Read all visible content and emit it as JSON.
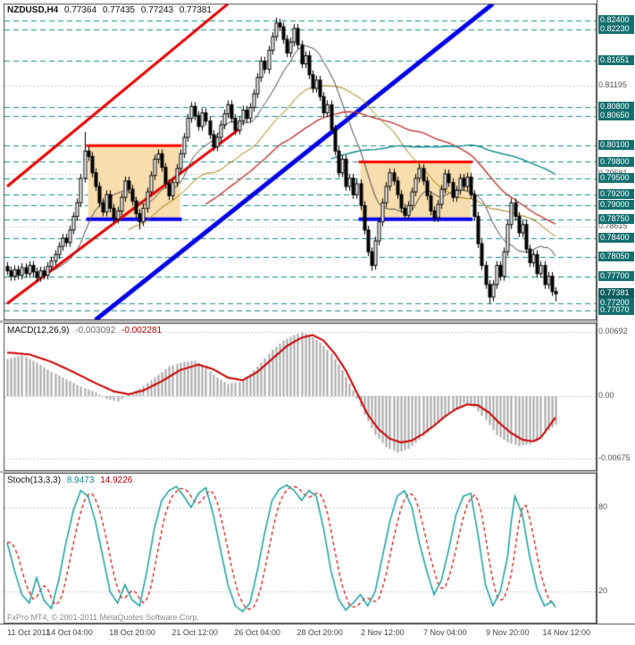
{
  "header": {
    "symbol": "NZDUSD,H4",
    "open": "0.77364",
    "high": "0.77435",
    "low": "0.77243",
    "close": "0.77381"
  },
  "watermark": "FxPro MT4, © 2001-2011 MetaQuotes Software Corp.",
  "colors": {
    "level": "#1d8a8a",
    "level_label_bg": "#136f6f",
    "grid": "#c8c8c8",
    "text": "#555555",
    "candle_up": "#ffffff",
    "candle_down": "#000000",
    "candle_outline": "#000000",
    "hist": "#a6a6a6",
    "macd_signal": "#cc0000",
    "stoch_main": "#18a0a0",
    "stoch_signal": "#cc0000",
    "box_fill": "#f8ddae",
    "box_top": "#ff0000",
    "box_bottom": "#0000ff",
    "trend_blue": "#0000e6",
    "trend_red": "#e60000"
  },
  "time_axis": {
    "labels": [
      "11 Oct 2011",
      "14 Oct 04:00",
      "18 Oct 20:00",
      "21 Oct 12:00",
      "26 Oct 04:00",
      "28 Oct 20:00",
      "2 Nov 12:00",
      "7 Nov 04:00",
      "9 Nov 20:00",
      "14 Nov 12:00"
    ],
    "tick_bars": [
      0,
      17,
      34,
      51,
      68,
      85,
      102,
      119,
      136,
      152
    ]
  },
  "chart_data": [
    {
      "type": "candlestick",
      "symbol": "NZDUSD",
      "timeframe": "H4",
      "price_min": 0.7691,
      "price_max": 0.8269,
      "bars": 150,
      "open_first": 0.7788,
      "wick": 0.0008,
      "closes": [
        0.778,
        0.777,
        0.7782,
        0.7772,
        0.7786,
        0.7775,
        0.779,
        0.7778,
        0.7768,
        0.778,
        0.7772,
        0.7788,
        0.7798,
        0.781,
        0.7825,
        0.784,
        0.7832,
        0.7855,
        0.788,
        0.7905,
        0.795,
        0.8,
        0.799,
        0.796,
        0.7935,
        0.7905,
        0.7888,
        0.792,
        0.7895,
        0.7875,
        0.789,
        0.7915,
        0.7945,
        0.793,
        0.7908,
        0.7885,
        0.787,
        0.7895,
        0.7925,
        0.7955,
        0.7985,
        0.7995,
        0.797,
        0.794,
        0.7918,
        0.7942,
        0.7968,
        0.7995,
        0.8025,
        0.806,
        0.8082,
        0.8065,
        0.8045,
        0.807,
        0.8055,
        0.803,
        0.8008,
        0.8025,
        0.8048,
        0.8068,
        0.8085,
        0.806,
        0.8038,
        0.8055,
        0.8075,
        0.806,
        0.808,
        0.8105,
        0.8135,
        0.8165,
        0.815,
        0.8185,
        0.821,
        0.8235,
        0.8228,
        0.8205,
        0.818,
        0.82,
        0.8225,
        0.8195,
        0.816,
        0.8175,
        0.814,
        0.8115,
        0.813,
        0.81,
        0.807,
        0.8085,
        0.804,
        0.8,
        0.796,
        0.7985,
        0.7935,
        0.795,
        0.792,
        0.794,
        0.79,
        0.7855,
        0.7815,
        0.779,
        0.7835,
        0.787,
        0.7905,
        0.7935,
        0.796,
        0.7945,
        0.792,
        0.7895,
        0.7882,
        0.79,
        0.7925,
        0.795,
        0.7968,
        0.7945,
        0.7918,
        0.789,
        0.7878,
        0.7902,
        0.793,
        0.7958,
        0.7942,
        0.7915,
        0.7928,
        0.795,
        0.7935,
        0.7952,
        0.792,
        0.788,
        0.783,
        0.779,
        0.7755,
        0.7732,
        0.7755,
        0.779,
        0.777,
        0.7815,
        0.7865,
        0.7905,
        0.788,
        0.785,
        0.7865,
        0.782,
        0.7795,
        0.781,
        0.7775,
        0.779,
        0.7755,
        0.777,
        0.7742,
        0.7738
      ],
      "wick_overrides": {
        "21": {
          "h": 0.8035
        },
        "36": {
          "l": 0.7856
        },
        "73": {
          "h": 0.8245
        },
        "74": {
          "h": 0.8243
        },
        "99": {
          "l": 0.778
        },
        "131": {
          "l": 0.772
        },
        "149": {
          "l": 0.7724
        }
      },
      "levels": [
        {
          "price": 0.824,
          "label": "0.82400"
        },
        {
          "price": 0.8223,
          "label": "0.82230"
        },
        {
          "price": 0.81651,
          "label": "0.81651"
        },
        {
          "price": 0.808,
          "label": "0.80800"
        },
        {
          "price": 0.8065,
          "label": "0.80650"
        },
        {
          "price": 0.801,
          "label": "0.80100"
        },
        {
          "price": 0.798,
          "label": "0.79800"
        },
        {
          "price": 0.795,
          "label": "0.79500"
        },
        {
          "price": 0.792,
          "label": "0.79200"
        },
        {
          "price": 0.79,
          "label": "0.79000"
        },
        {
          "price": 0.7875,
          "label": "0.78750"
        },
        {
          "price": 0.784,
          "label": "0.78400"
        },
        {
          "price": 0.7805,
          "label": "0.78050"
        },
        {
          "price": 0.777,
          "label": "0.77700"
        },
        {
          "price": 0.772,
          "label": "0.77200"
        },
        {
          "price": 0.7707,
          "label": "0.77070"
        }
      ],
      "grid_ticks": [
        {
          "price": 0.81195,
          "label": "0.81195"
        },
        {
          "price": 0.79581,
          "label": "0.79581"
        },
        {
          "price": 0.78615,
          "label": "0.78615"
        }
      ],
      "current_price": {
        "price": 0.77381,
        "label": "0.77381"
      },
      "trendlines": [
        {
          "name": "blue-uptrend-line",
          "color": "#0000e6",
          "width": 5,
          "points": [
            [
              24,
              0.769
            ],
            [
              132,
              0.827
            ]
          ]
        },
        {
          "name": "red-channel-upper",
          "color": "#e60000",
          "width": 3,
          "points": [
            [
              0,
              0.7935
            ],
            [
              60,
              0.827
            ]
          ]
        },
        {
          "name": "red-channel-lower",
          "color": "#e60000",
          "width": 3,
          "points": [
            [
              0,
              0.772
            ],
            [
              63,
              0.804
            ]
          ]
        }
      ],
      "boxes": [
        {
          "from_bar": 22,
          "to_bar": 47,
          "top": 0.801,
          "bottom": 0.7875,
          "fill": "#f8ddae",
          "top_color": "#ff0000",
          "bottom_color": "#0000ff"
        },
        {
          "from_bar": 96,
          "to_bar": 126,
          "top": 0.798,
          "bottom": 0.7875,
          "fill": "#f8ddae",
          "top_color": "#ff0000",
          "bottom_color": "#0000ff"
        }
      ],
      "moving_averages": [
        {
          "period": 13,
          "color": "#4a4a4a",
          "width": 1
        },
        {
          "period": 34,
          "color": "#9a7d00",
          "width": 1
        },
        {
          "period": 55,
          "color": "#c23a3a",
          "width": 1.4
        },
        {
          "period": 89,
          "color": "#0e8989",
          "width": 1.4
        }
      ]
    },
    {
      "type": "macd",
      "label": "MACD(12,26,9)",
      "value_main": "-0.003092",
      "value_signal": "-0.002281",
      "v_min": -0.008,
      "v_max": 0.0078,
      "ticks": [
        {
          "v": 0.00692,
          "label": "0.00692"
        },
        {
          "v": 0,
          "label": "0.00"
        },
        {
          "v": -0.00675,
          "label": "-0.00675"
        }
      ],
      "main_anchors": [
        [
          0,
          0.004
        ],
        [
          4,
          0.0044
        ],
        [
          8,
          0.0036
        ],
        [
          12,
          0.0026
        ],
        [
          16,
          0.0018
        ],
        [
          20,
          0.001
        ],
        [
          24,
          0.0004
        ],
        [
          27,
          -0.0003
        ],
        [
          30,
          -0.0006
        ],
        [
          33,
          0.0002
        ],
        [
          36,
          0.0008
        ],
        [
          40,
          0.002
        ],
        [
          44,
          0.0032
        ],
        [
          48,
          0.0037
        ],
        [
          51,
          0.0038
        ],
        [
          54,
          0.003
        ],
        [
          57,
          0.002
        ],
        [
          60,
          0.0013
        ],
        [
          63,
          0.0015
        ],
        [
          66,
          0.0024
        ],
        [
          69,
          0.0036
        ],
        [
          72,
          0.005
        ],
        [
          75,
          0.006
        ],
        [
          78,
          0.0066
        ],
        [
          80,
          0.0069
        ],
        [
          82,
          0.0066
        ],
        [
          85,
          0.0058
        ],
        [
          88,
          0.0046
        ],
        [
          91,
          0.0028
        ],
        [
          94,
          0.0006
        ],
        [
          97,
          -0.002
        ],
        [
          100,
          -0.0042
        ],
        [
          103,
          -0.0055
        ],
        [
          106,
          -0.0061
        ],
        [
          109,
          -0.0057
        ],
        [
          112,
          -0.0047
        ],
        [
          115,
          -0.0036
        ],
        [
          118,
          -0.0026
        ],
        [
          121,
          -0.0015
        ],
        [
          124,
          -0.0008
        ],
        [
          127,
          -0.0012
        ],
        [
          130,
          -0.0026
        ],
        [
          133,
          -0.0042
        ],
        [
          136,
          -0.005
        ],
        [
          139,
          -0.0054
        ],
        [
          142,
          -0.0052
        ],
        [
          145,
          -0.0044
        ],
        [
          147,
          -0.0037
        ],
        [
          149,
          -0.0031
        ]
      ],
      "signal_anchors": [
        [
          0,
          0.0047
        ],
        [
          6,
          0.0045
        ],
        [
          12,
          0.0037
        ],
        [
          18,
          0.0026
        ],
        [
          24,
          0.0014
        ],
        [
          29,
          0.0005
        ],
        [
          33,
          0.0002
        ],
        [
          37,
          0.0006
        ],
        [
          42,
          0.0016
        ],
        [
          47,
          0.0028
        ],
        [
          52,
          0.0034
        ],
        [
          56,
          0.0029
        ],
        [
          60,
          0.002
        ],
        [
          64,
          0.0017
        ],
        [
          68,
          0.0026
        ],
        [
          72,
          0.004
        ],
        [
          76,
          0.0054
        ],
        [
          80,
          0.0063
        ],
        [
          83,
          0.0066
        ],
        [
          86,
          0.006
        ],
        [
          89,
          0.0046
        ],
        [
          92,
          0.0028
        ],
        [
          95,
          0.0004
        ],
        [
          98,
          -0.002
        ],
        [
          101,
          -0.0036
        ],
        [
          104,
          -0.0046
        ],
        [
          107,
          -0.005
        ],
        [
          110,
          -0.0048
        ],
        [
          113,
          -0.0041
        ],
        [
          116,
          -0.0032
        ],
        [
          119,
          -0.0022
        ],
        [
          122,
          -0.0014
        ],
        [
          125,
          -0.0009
        ],
        [
          128,
          -0.001
        ],
        [
          131,
          -0.0018
        ],
        [
          134,
          -0.003
        ],
        [
          137,
          -0.004
        ],
        [
          140,
          -0.0047
        ],
        [
          143,
          -0.0049
        ],
        [
          145,
          -0.0045
        ],
        [
          147,
          -0.0034
        ],
        [
          149,
          -0.0023
        ]
      ]
    },
    {
      "type": "stochastic",
      "label": "Stoch(13,3,3)",
      "value_main": "8.9473",
      "value_signal": "14.9226",
      "v_min": -2,
      "v_max": 104,
      "ticks": [
        {
          "v": 80,
          "label": "80"
        },
        {
          "v": 20,
          "label": "20"
        }
      ],
      "signal_smoothing": 3,
      "main_anchors": [
        [
          0,
          55
        ],
        [
          2,
          35
        ],
        [
          4,
          18
        ],
        [
          6,
          12
        ],
        [
          8,
          30
        ],
        [
          10,
          14
        ],
        [
          12,
          8
        ],
        [
          14,
          28
        ],
        [
          16,
          55
        ],
        [
          18,
          78
        ],
        [
          20,
          92
        ],
        [
          22,
          88
        ],
        [
          24,
          70
        ],
        [
          26,
          45
        ],
        [
          28,
          20
        ],
        [
          30,
          12
        ],
        [
          32,
          25
        ],
        [
          34,
          14
        ],
        [
          36,
          10
        ],
        [
          38,
          35
        ],
        [
          40,
          65
        ],
        [
          42,
          85
        ],
        [
          44,
          92
        ],
        [
          46,
          95
        ],
        [
          48,
          88
        ],
        [
          50,
          80
        ],
        [
          52,
          90
        ],
        [
          54,
          94
        ],
        [
          56,
          75
        ],
        [
          58,
          50
        ],
        [
          60,
          25
        ],
        [
          62,
          10
        ],
        [
          64,
          6
        ],
        [
          66,
          12
        ],
        [
          68,
          35
        ],
        [
          70,
          62
        ],
        [
          72,
          85
        ],
        [
          74,
          93
        ],
        [
          76,
          96
        ],
        [
          78,
          92
        ],
        [
          80,
          85
        ],
        [
          82,
          92
        ],
        [
          84,
          88
        ],
        [
          86,
          65
        ],
        [
          88,
          35
        ],
        [
          90,
          15
        ],
        [
          92,
          7
        ],
        [
          94,
          12
        ],
        [
          96,
          18
        ],
        [
          98,
          10
        ],
        [
          100,
          20
        ],
        [
          102,
          45
        ],
        [
          104,
          70
        ],
        [
          106,
          88
        ],
        [
          108,
          92
        ],
        [
          110,
          80
        ],
        [
          112,
          55
        ],
        [
          114,
          35
        ],
        [
          116,
          18
        ],
        [
          118,
          28
        ],
        [
          120,
          50
        ],
        [
          122,
          75
        ],
        [
          124,
          88
        ],
        [
          126,
          90
        ],
        [
          128,
          60
        ],
        [
          130,
          25
        ],
        [
          132,
          10
        ],
        [
          134,
          20
        ],
        [
          136,
          45
        ],
        [
          137,
          70
        ],
        [
          138,
          88
        ],
        [
          140,
          75
        ],
        [
          142,
          45
        ],
        [
          144,
          22
        ],
        [
          146,
          10
        ],
        [
          148,
          13
        ],
        [
          149,
          9
        ]
      ]
    }
  ]
}
